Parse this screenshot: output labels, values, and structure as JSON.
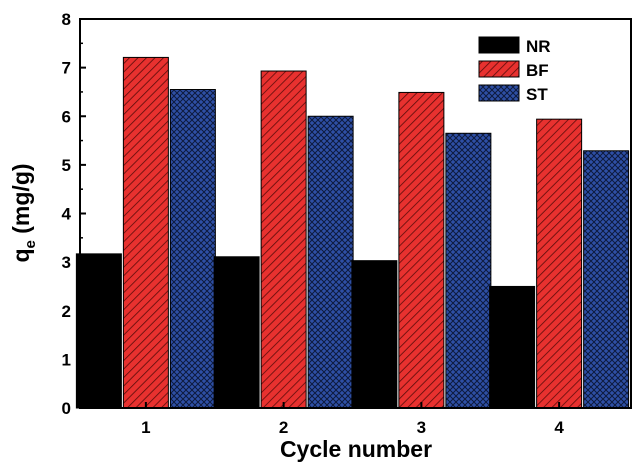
{
  "chart_data": {
    "type": "bar",
    "categories": [
      "1",
      "2",
      "3",
      "4"
    ],
    "series": [
      {
        "name": "NR",
        "values": [
          3.17,
          3.11,
          3.03,
          2.5
        ],
        "color": "#000000",
        "pattern": "solid"
      },
      {
        "name": "BF",
        "values": [
          7.21,
          6.93,
          6.49,
          5.94
        ],
        "color": "#e8312f",
        "pattern": "diagonal-hatch"
      },
      {
        "name": "ST",
        "values": [
          6.55,
          6.0,
          5.65,
          5.29
        ],
        "color": "#2e4fa5",
        "pattern": "crosshatch"
      }
    ],
    "xlabel": "Cycle number",
    "ylabel": {
      "main": "q",
      "subscript": "e",
      "rest": " (mg/g)"
    },
    "ylim": [
      0,
      8
    ],
    "yticks": [
      "0",
      "1",
      "2",
      "3",
      "4",
      "5",
      "6",
      "7",
      "8"
    ],
    "grid": false,
    "legend_position": "top-right"
  }
}
